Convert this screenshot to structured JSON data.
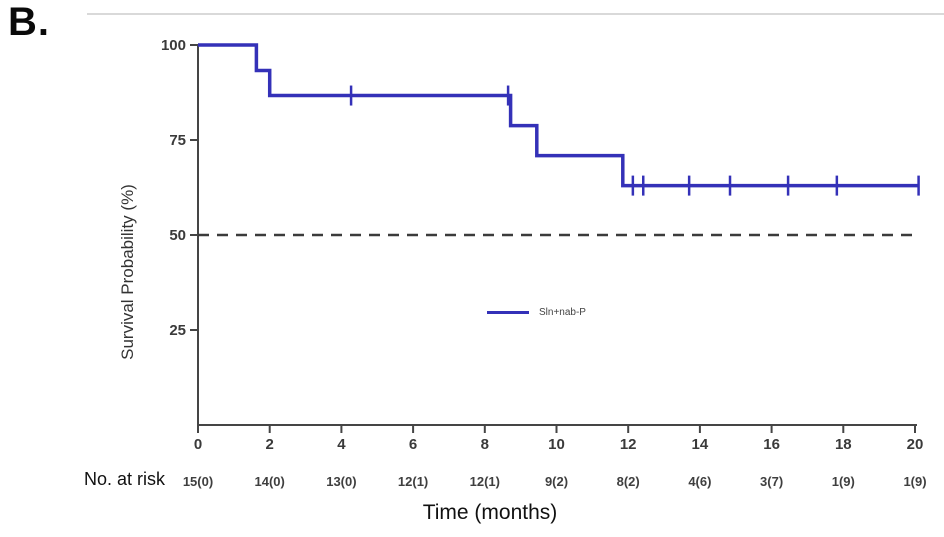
{
  "panel_label": "B.",
  "colors": {
    "curve": "#3431b8",
    "axis": "#454545",
    "tick_text": "#3a3a3a",
    "reference_line": "#3b3b3b",
    "divider": "#d9d9d9"
  },
  "chart_data": {
    "type": "line",
    "subtype": "kaplan-meier-step-curve",
    "title": "",
    "xlabel": "Time (months)",
    "ylabel": "Survival Probability (%)",
    "xlim": [
      0,
      20
    ],
    "ylim": [
      0,
      100
    ],
    "xticks": [
      0,
      2,
      4,
      6,
      8,
      10,
      12,
      14,
      16,
      18,
      20
    ],
    "yticks": [
      100,
      75,
      50,
      25
    ],
    "grid": false,
    "legend_position": "center-of-plot",
    "reference_line": {
      "y": 50,
      "style": "dashed"
    },
    "series": [
      {
        "name": "Sln+nab-P",
        "steps_time_pct": [
          [
            0,
            100
          ],
          [
            1.63,
            100
          ],
          [
            1.63,
            93.3
          ],
          [
            2.0,
            93.3
          ],
          [
            2.0,
            86.7
          ],
          [
            8.72,
            86.7
          ],
          [
            8.72,
            78.8
          ],
          [
            9.45,
            78.8
          ],
          [
            9.45,
            70.9
          ],
          [
            11.85,
            70.9
          ],
          [
            11.85,
            63.0
          ],
          [
            20.1,
            63.0
          ]
        ],
        "censor_marks_time_pct": [
          [
            4.27,
            86.7
          ],
          [
            8.65,
            86.7
          ],
          [
            12.13,
            63.0
          ],
          [
            12.42,
            63.0
          ],
          [
            13.7,
            63.0
          ],
          [
            14.84,
            63.0
          ],
          [
            16.46,
            63.0
          ],
          [
            17.82,
            63.0
          ],
          [
            20.1,
            63.0
          ]
        ]
      }
    ],
    "legend": {
      "label": "Sln+nab-P"
    },
    "risk_table": {
      "label": "No. at risk",
      "times": [
        0,
        2,
        4,
        6,
        8,
        10,
        12,
        14,
        16,
        18,
        20
      ],
      "values": [
        "15(0)",
        "14(0)",
        "13(0)",
        "12(1)",
        "12(1)",
        "9(2)",
        "8(2)",
        "4(6)",
        "3(7)",
        "1(9)",
        "1(9)"
      ]
    }
  }
}
